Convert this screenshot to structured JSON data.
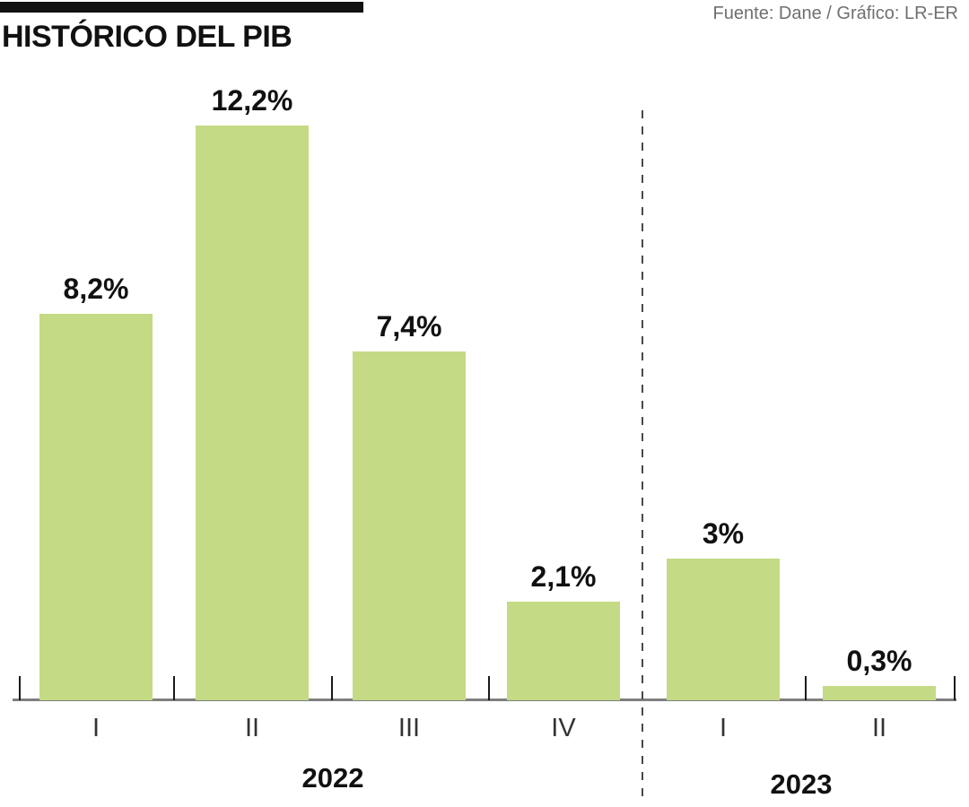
{
  "header": {
    "title": "HISTÓRICO DEL PIB",
    "source": "Fuente: Dane / Gráfico: LR-ER"
  },
  "chart_data": {
    "type": "bar",
    "title": "HISTÓRICO DEL PIB",
    "source": "Fuente: Dane / Gráfico: LR-ER",
    "categories": [
      "I",
      "II",
      "III",
      "IV",
      "I",
      "II"
    ],
    "group_labels": [
      "2022",
      "2023"
    ],
    "values": [
      8.2,
      12.2,
      7.4,
      2.1,
      3,
      0.3
    ],
    "value_labels": [
      "8,2%",
      "12,2%",
      "7,4%",
      "2,1%",
      "3%",
      "0,3%"
    ],
    "divider_after_index": 3,
    "bar_color": "#c4da85",
    "axis_line_color": "#7f7f7f",
    "tick_color": "#1a1a1a",
    "divider_color": "#4a4a4a",
    "label_color": "#111111",
    "ylim": [
      0,
      12.2
    ],
    "grid": false,
    "legend": false
  }
}
